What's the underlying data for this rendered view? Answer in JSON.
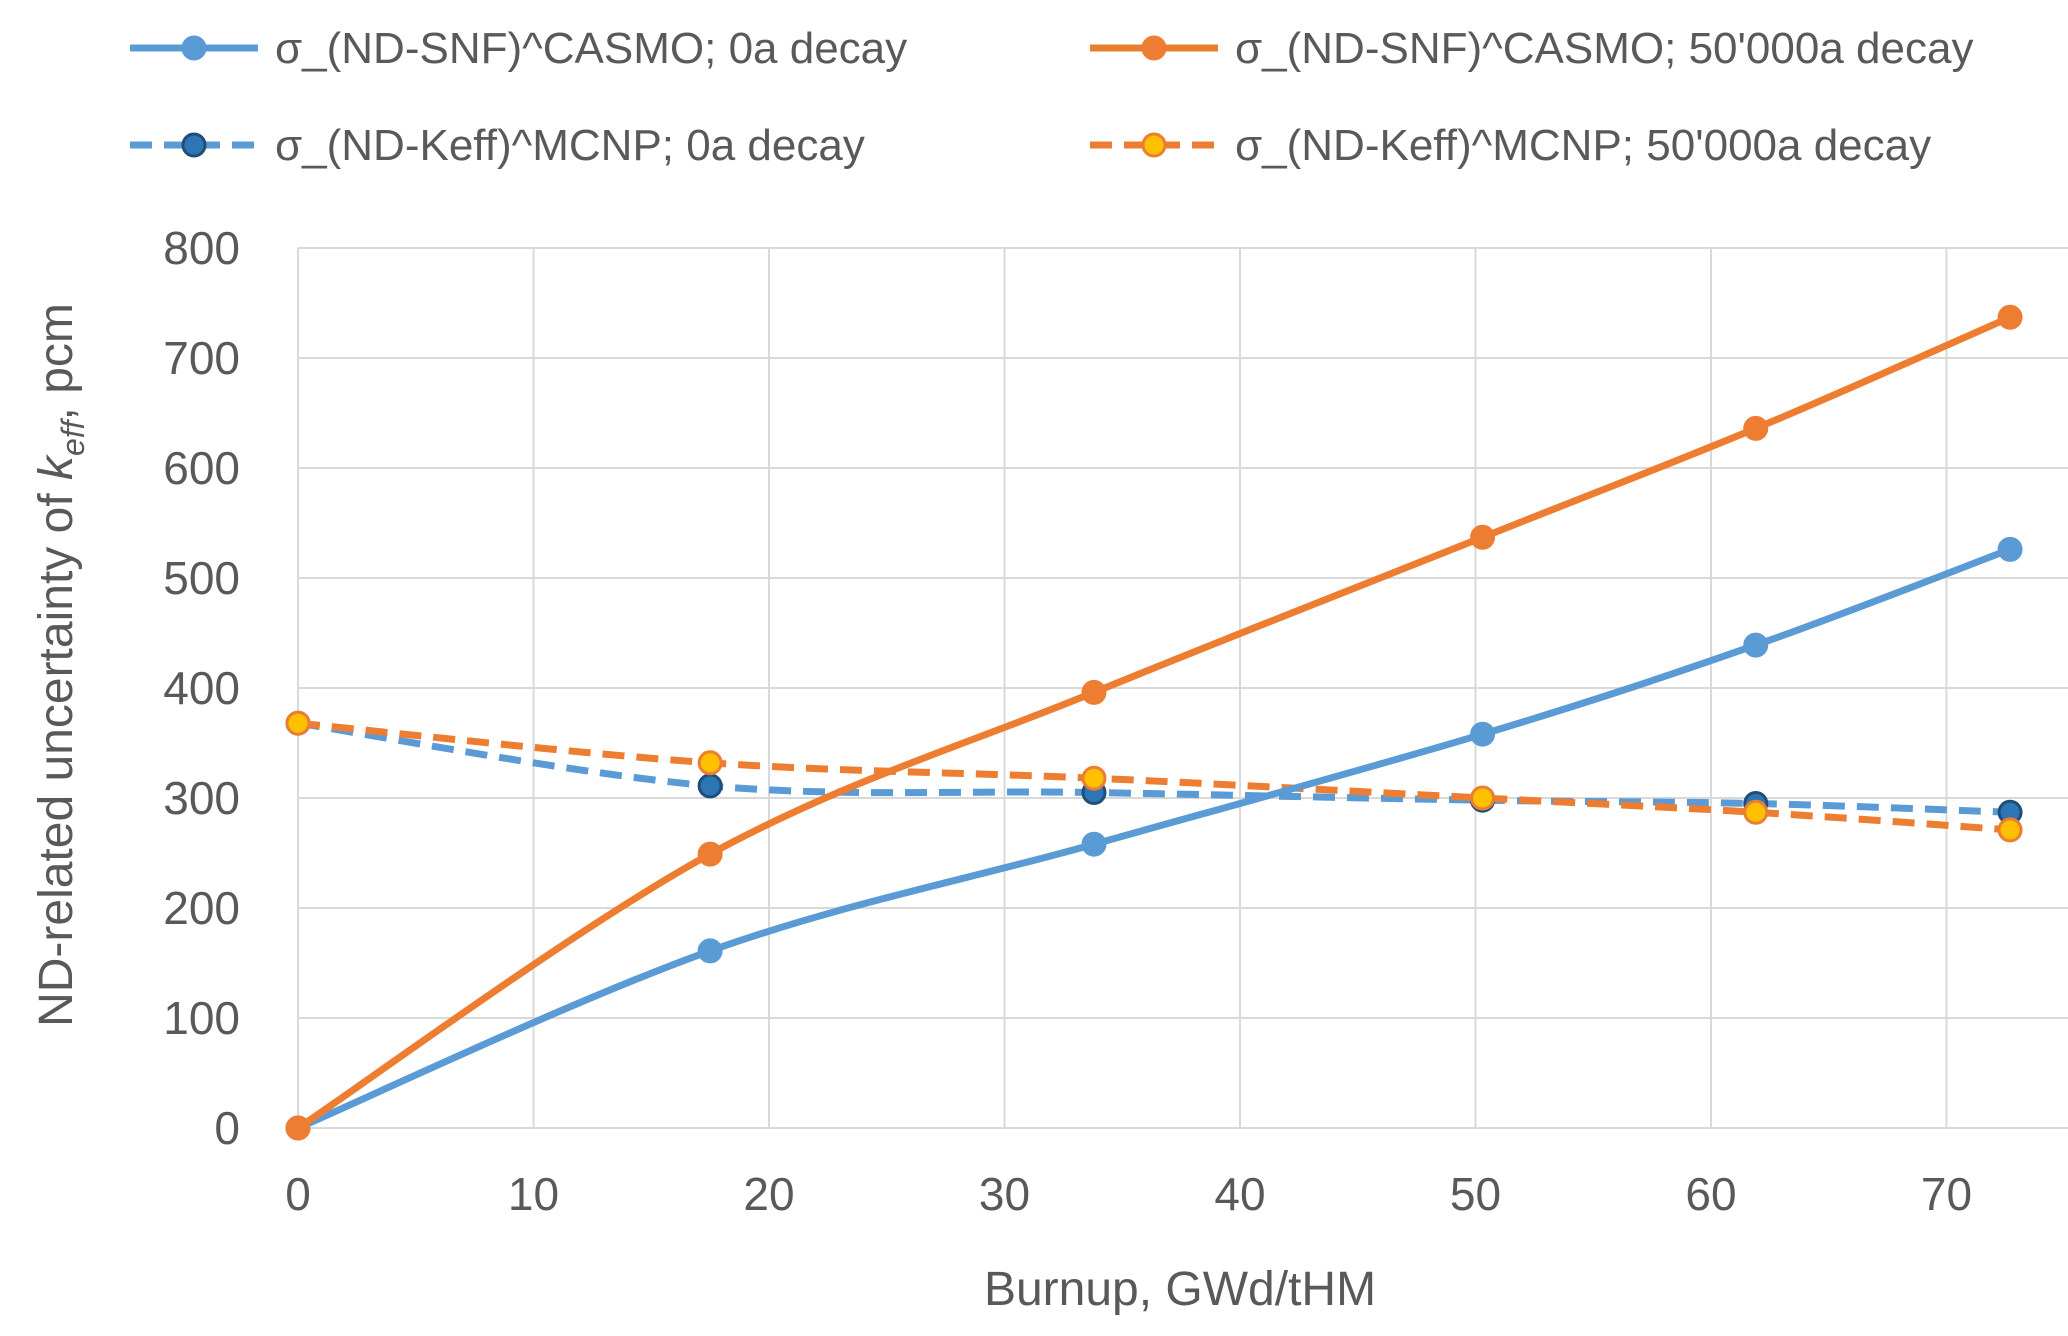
{
  "chart_data": {
    "type": "line",
    "title": "",
    "xlabel": "Burnup, GWd/tHM",
    "ylabel": {
      "prefix": "ND-related uncertainty of ",
      "var": "k",
      "sub": "eff",
      "suffix": ", pcm"
    },
    "xlim": [
      0,
      73
    ],
    "ylim": [
      0,
      800
    ],
    "xticks": [
      0,
      10,
      20,
      30,
      40,
      50,
      60,
      70
    ],
    "yticks": [
      0,
      100,
      200,
      300,
      400,
      500,
      600,
      700,
      800
    ],
    "grid": true,
    "legend_position": "top",
    "x": [
      0,
      17.5,
      33.8,
      50.3,
      61.9,
      72.7
    ],
    "series": [
      {
        "name": "σ_(ND-SNF)^CASMO; 0a decay",
        "values": [
          0,
          161,
          258,
          358,
          439,
          526
        ],
        "color": "#5B9BD5",
        "dashed": false,
        "marker_fill": "#5B9BD5",
        "marker_stroke": "#5B9BD5"
      },
      {
        "name": "σ_(ND-SNF)^CASMO; 50'000a decay",
        "values": [
          0,
          249,
          396,
          537,
          636,
          737
        ],
        "color": "#ED7D31",
        "dashed": false,
        "marker_fill": "#ED7D31",
        "marker_stroke": "#ED7D31"
      },
      {
        "name": "σ_(ND-Keff)^MCNP; 0a decay",
        "values": [
          368,
          311,
          305,
          298,
          295,
          287
        ],
        "color": "#5B9BD5",
        "dashed": true,
        "marker_fill": "#2E75B6",
        "marker_stroke": "#1F4E79"
      },
      {
        "name": "σ_(ND-Keff)^MCNP; 50'000a decay",
        "values": [
          368,
          332,
          318,
          300,
          287,
          271
        ],
        "color": "#ED7D31",
        "dashed": true,
        "marker_fill": "#FFC000",
        "marker_stroke": "#ED7D31"
      }
    ]
  }
}
